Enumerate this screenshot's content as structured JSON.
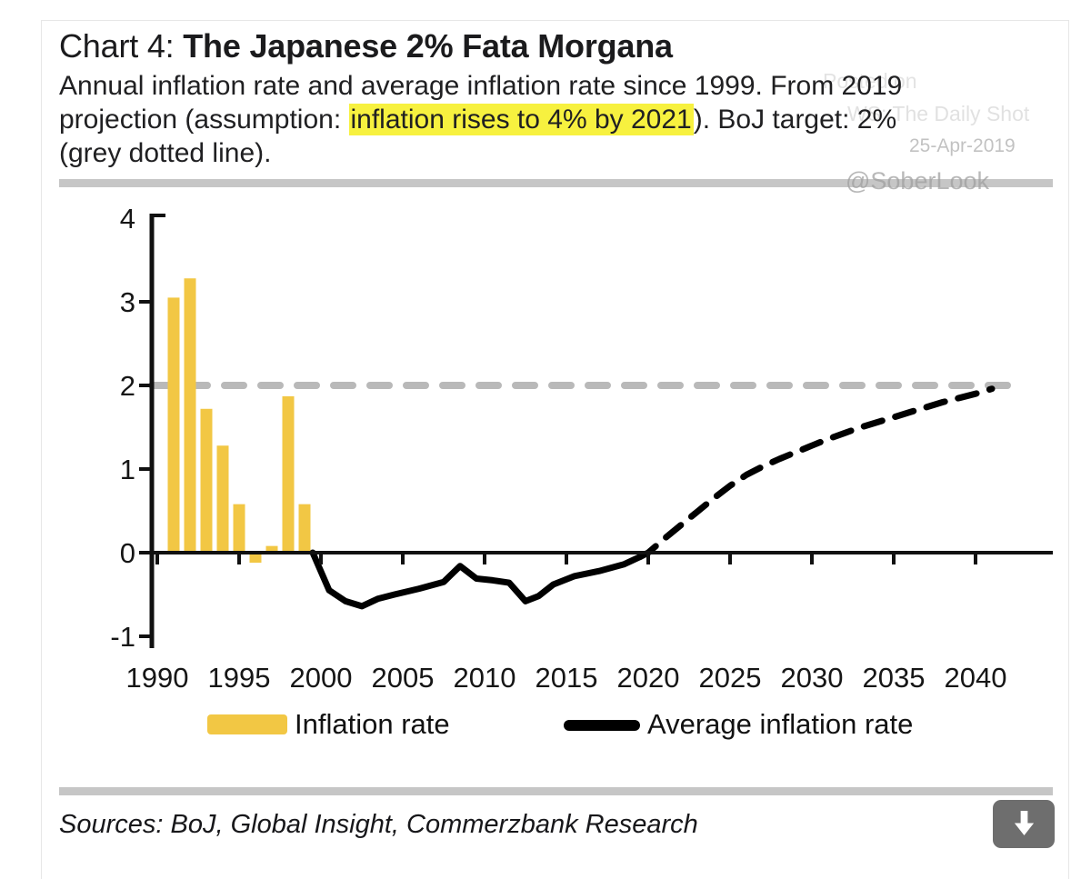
{
  "header": {
    "title_prefix": "Chart 4: ",
    "title_bold": "The Japanese 2% Fata Morgana",
    "subtitle_line1": "Annual inflation rate and average inflation rate since 1999. From 2019",
    "subtitle_line2_pre": "projection (assumption: ",
    "subtitle_line2_highlight": "inflation rises to 4% by 2021",
    "subtitle_line2_post": "). BoJ target: 2%",
    "subtitle_line3": "(grey dotted line).",
    "highlight_color": "#F7F13F"
  },
  "watermark": {
    "line1": "Posted on",
    "line2": "WS: The Daily Shot",
    "date": "25-Apr-2019",
    "handle": "@SoberLook"
  },
  "legend": {
    "bar": {
      "label": "Inflation rate",
      "color": "#F2C744"
    },
    "line": {
      "label": "Average inflation rate",
      "color": "#000000"
    }
  },
  "footer": {
    "sources": "Sources: BoJ, Global Insight, Commerzbank Research"
  },
  "download_button": {
    "bg": "#6E6E6E",
    "icon": "down-arrow-icon"
  },
  "chart_data": {
    "type": "bar",
    "note": "Combined bar + line chart: annual inflation bars, average inflation line with dashed projection, grey dashed BoJ 2% target line",
    "xlim": [
      1989,
      2042
    ],
    "ylim": [
      -1,
      4
    ],
    "x_ticks": [
      1990,
      1995,
      2000,
      2005,
      2010,
      2015,
      2020,
      2025,
      2030,
      2035,
      2040
    ],
    "y_ticks": [
      4,
      3,
      2,
      1,
      0,
      -1
    ],
    "grid": false,
    "legend_position": "bottom",
    "target_line": {
      "value": 2.0,
      "meaning": "BoJ inflation target 2% (grey dotted line)",
      "color": "#B9B9B9",
      "style": "dashed"
    },
    "series": [
      {
        "name": "Inflation rate",
        "type": "bar",
        "color": "#F2C744",
        "points": [
          [
            1990,
            3.05
          ],
          [
            1991,
            3.28
          ],
          [
            1992,
            1.72
          ],
          [
            1993,
            1.28
          ],
          [
            1994,
            0.58
          ],
          [
            1995,
            -0.12
          ],
          [
            1996,
            0.08
          ],
          [
            1997,
            1.87
          ],
          [
            1998,
            0.58
          ]
        ]
      },
      {
        "name": "Average inflation rate",
        "type": "line-solid",
        "color": "#000000",
        "points": [
          [
            1999.5,
            0.0
          ],
          [
            2000.5,
            -0.45
          ],
          [
            2001.5,
            -0.58
          ],
          [
            2002.5,
            -0.64
          ],
          [
            2003.5,
            -0.55
          ],
          [
            2004.5,
            -0.5
          ],
          [
            2006.0,
            -0.43
          ],
          [
            2007.5,
            -0.35
          ],
          [
            2008.5,
            -0.16
          ],
          [
            2009.5,
            -0.31
          ],
          [
            2010.5,
            -0.33
          ],
          [
            2011.5,
            -0.36
          ],
          [
            2012.5,
            -0.58
          ],
          [
            2013.3,
            -0.52
          ],
          [
            2014.2,
            -0.38
          ],
          [
            2015.5,
            -0.28
          ],
          [
            2017.0,
            -0.22
          ],
          [
            2018.5,
            -0.14
          ],
          [
            2019.5,
            -0.05
          ]
        ]
      },
      {
        "name": "Average inflation rate (projection, assumption: inflation rises to 4% by 2021)",
        "type": "line-dashed",
        "color": "#000000",
        "points": [
          [
            2019.5,
            -0.05
          ],
          [
            2020,
            0.0
          ],
          [
            2021,
            0.17
          ],
          [
            2022,
            0.33
          ],
          [
            2023,
            0.49
          ],
          [
            2024,
            0.65
          ],
          [
            2025,
            0.8
          ],
          [
            2026,
            0.93
          ],
          [
            2027,
            1.03
          ],
          [
            2028,
            1.12
          ],
          [
            2029,
            1.2
          ],
          [
            2030,
            1.28
          ],
          [
            2031,
            1.36
          ],
          [
            2032,
            1.43
          ],
          [
            2033,
            1.5
          ],
          [
            2034,
            1.56
          ],
          [
            2035,
            1.62
          ],
          [
            2036,
            1.68
          ],
          [
            2037,
            1.74
          ],
          [
            2038,
            1.8
          ],
          [
            2039,
            1.85
          ],
          [
            2040,
            1.9
          ],
          [
            2041,
            1.96
          ]
        ]
      }
    ]
  }
}
